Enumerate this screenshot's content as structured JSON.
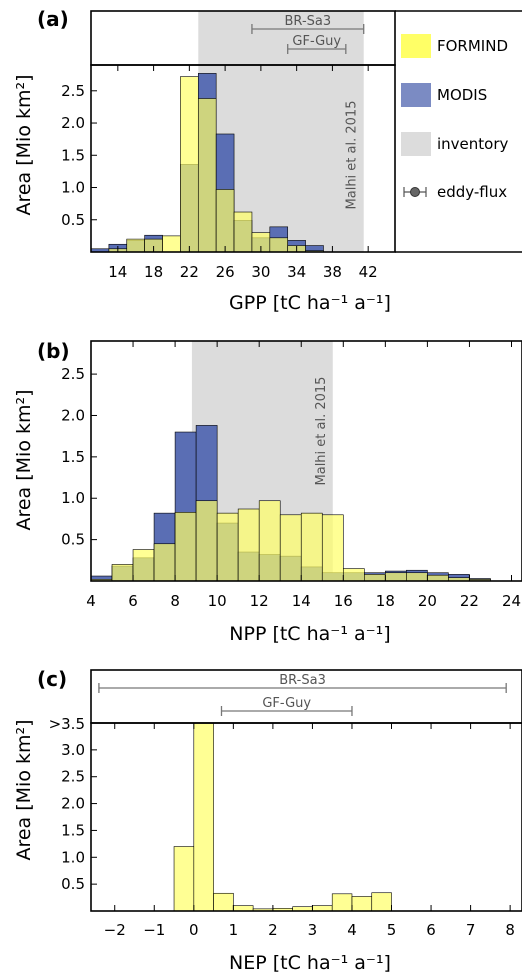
{
  "colors": {
    "formind": "#ffff66",
    "modis": "#5a6eb4",
    "overlap": "#a8b060",
    "inventory": "#dcdcdc",
    "flux": "#777777"
  },
  "legend": {
    "items": [
      {
        "label": "FORMIND",
        "kind": "formind"
      },
      {
        "label": "MODIS",
        "kind": "modis"
      },
      {
        "label": "inventory",
        "kind": "inventory"
      },
      {
        "label": "eddy-flux",
        "kind": "flux"
      }
    ]
  },
  "chart_data": [
    {
      "panel": "(a)",
      "type": "bar",
      "xlabel": "GPP [tC ha⁻¹ a⁻¹]",
      "ylabel": "Area [Mio km²]",
      "xlim": [
        11,
        45
      ],
      "ylim": [
        0,
        2.9
      ],
      "xticks": [
        14,
        18,
        22,
        26,
        30,
        34,
        38,
        42
      ],
      "yticks": [
        0.5,
        1.0,
        1.5,
        2.0,
        2.5
      ],
      "bin_width": 2,
      "bin_starts": [
        11,
        13,
        15,
        17,
        19,
        21,
        23,
        25,
        27,
        29,
        31,
        33,
        35,
        37
      ],
      "series": [
        {
          "name": "FORMIND",
          "values": [
            0,
            0.05,
            0.2,
            0.2,
            0.25,
            2.72,
            2.38,
            0.97,
            0.62,
            0.3,
            0.22,
            0.1,
            0.02,
            0
          ]
        },
        {
          "name": "MODIS",
          "values": [
            0.05,
            0.12,
            0.18,
            0.26,
            0.0,
            1.36,
            2.77,
            1.83,
            0.49,
            0.22,
            0.39,
            0.18,
            0.1,
            0
          ]
        }
      ],
      "inventory_range": [
        23,
        41.5
      ],
      "inventory_label": "Malhi et al. 2015",
      "flux_ranges": [
        {
          "label": "BR-Sa3",
          "range": [
            29,
            41.5
          ]
        },
        {
          "label": "GF-Guy",
          "range": [
            33,
            39.5
          ]
        }
      ]
    },
    {
      "panel": "(b)",
      "type": "bar",
      "xlabel": "NPP [tC ha⁻¹ a⁻¹]",
      "ylabel": "Area [Mio km²]",
      "xlim": [
        4,
        24.5
      ],
      "ylim": [
        0,
        2.9
      ],
      "xticks": [
        4,
        6,
        8,
        10,
        12,
        14,
        16,
        18,
        20,
        22,
        24
      ],
      "yticks": [
        0.5,
        1.0,
        1.5,
        2.0,
        2.5
      ],
      "bin_width": 1,
      "bin_starts": [
        4,
        5,
        6,
        7,
        8,
        9,
        10,
        11,
        12,
        13,
        14,
        15,
        16,
        17,
        18,
        19,
        20,
        21,
        22
      ],
      "series": [
        {
          "name": "FORMIND",
          "values": [
            0.02,
            0.2,
            0.38,
            0.45,
            0.83,
            0.97,
            0.82,
            0.87,
            0.97,
            0.8,
            0.82,
            0.8,
            0.15,
            0.08,
            0.1,
            0.1,
            0.07,
            0.04,
            0.02
          ]
        },
        {
          "name": "MODIS",
          "values": [
            0.06,
            0.18,
            0.28,
            0.82,
            1.8,
            1.88,
            0.7,
            0.35,
            0.32,
            0.3,
            0.17,
            0.1,
            0.1,
            0.1,
            0.12,
            0.13,
            0.1,
            0.08,
            0.03
          ]
        }
      ],
      "inventory_range": [
        8.8,
        15.5
      ],
      "inventory_label": "Malhi et al. 2015"
    },
    {
      "panel": "(c)",
      "type": "bar",
      "xlabel": "NEP [tC ha⁻¹ a⁻¹]",
      "ylabel": "Area [Mio km²]",
      "xlim": [
        -2.6,
        8.3
      ],
      "ylim": [
        0,
        3.5
      ],
      "xticks": [
        -2,
        -1,
        0,
        1,
        2,
        3,
        4,
        5,
        6,
        7,
        8
      ],
      "yticks": [
        0.5,
        1.0,
        1.5,
        2.0,
        2.5,
        3.0
      ],
      "ytick_top_label": ">3.5",
      "bin_width": 0.5,
      "bin_starts": [
        -0.5,
        0,
        0.5,
        1,
        1.5,
        2,
        2.5,
        3,
        3.5,
        4,
        4.5
      ],
      "series": [
        {
          "name": "FORMIND",
          "values": [
            1.2,
            3.5,
            0.33,
            0.1,
            0.04,
            0.05,
            0.08,
            0.1,
            0.32,
            0.27,
            0.34
          ]
        }
      ],
      "flux_ranges": [
        {
          "label": "BR-Sa3",
          "range": [
            -2.4,
            7.9
          ]
        },
        {
          "label": "GF-Guy",
          "range": [
            0.7,
            4
          ]
        }
      ]
    }
  ]
}
